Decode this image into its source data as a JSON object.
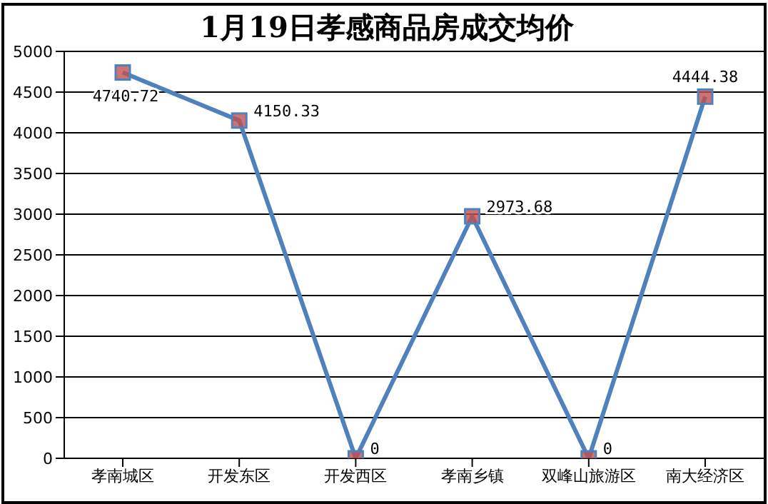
{
  "chart_data": {
    "type": "line",
    "title": "1月19日孝感商品房成交均价",
    "categories": [
      "孝南城区",
      "开发东区",
      "开发西区",
      "孝南乡镇",
      "双峰山旅游区",
      "南大经济区"
    ],
    "series": [
      {
        "color": "#4f81bd",
        "values": [
          4740.72,
          4150.33,
          0,
          2973.68,
          0,
          4444.38
        ]
      }
    ],
    "ylim": [
      0,
      5000
    ],
    "yticks": [
      0,
      500,
      1000,
      1500,
      2000,
      2500,
      3000,
      3500,
      4000,
      4500,
      5000
    ],
    "grid": "y",
    "legend": false,
    "marker": "square",
    "data_labels": true
  }
}
